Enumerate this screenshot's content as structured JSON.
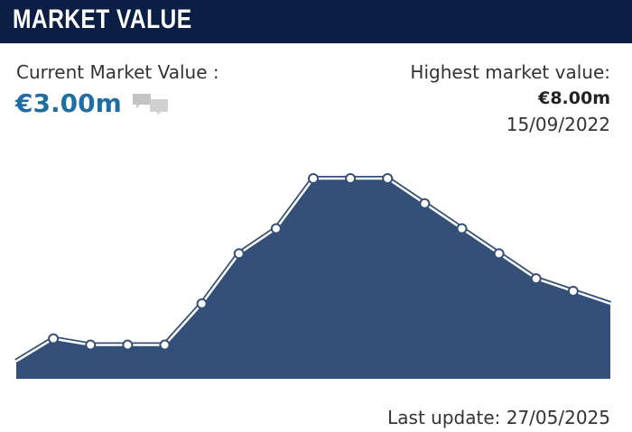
{
  "header": {
    "title": "MARKET VALUE"
  },
  "summary": {
    "current_label": "Current Market Value :",
    "current_value": "€3.00m",
    "highest_label": "Highest market value:",
    "highest_value": "€8.00m",
    "highest_date": "15/09/2022"
  },
  "footer": {
    "last_update": "Last update: 27/05/2025"
  },
  "chart_data": {
    "type": "area",
    "categories": [
      null,
      null,
      null,
      null,
      null,
      null,
      null,
      null,
      null,
      null,
      null,
      null,
      null,
      null,
      null,
      null,
      null
    ],
    "values": [
      0.7,
      1.6,
      1.35,
      1.35,
      1.35,
      3.0,
      5.0,
      6.0,
      8.0,
      8.0,
      8.0,
      7.0,
      6.0,
      5.0,
      4.0,
      3.5,
      3.0
    ],
    "color": "#344f78",
    "ylim": [
      0,
      8
    ]
  }
}
